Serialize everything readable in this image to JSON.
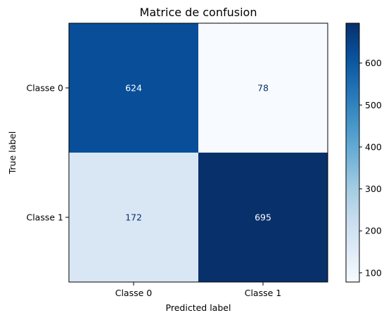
{
  "chart_data": {
    "type": "heatmap",
    "title": "Matrice de confusion",
    "xlabel": "Predicted label",
    "ylabel": "True label",
    "x_categories": [
      "Classe 0",
      "Classe 1"
    ],
    "y_categories": [
      "Classe 0",
      "Classe 1"
    ],
    "values": [
      [
        624,
        78
      ],
      [
        172,
        695
      ]
    ],
    "colormap": "Blues",
    "colorbar": {
      "vmin": 78,
      "vmax": 695,
      "ticks": [
        100,
        200,
        300,
        400,
        500,
        600
      ]
    },
    "colors": {
      "low": "#f7fbff",
      "high": "#08306b",
      "text_light": "#ffffff",
      "text_dark": "#08306b"
    }
  }
}
